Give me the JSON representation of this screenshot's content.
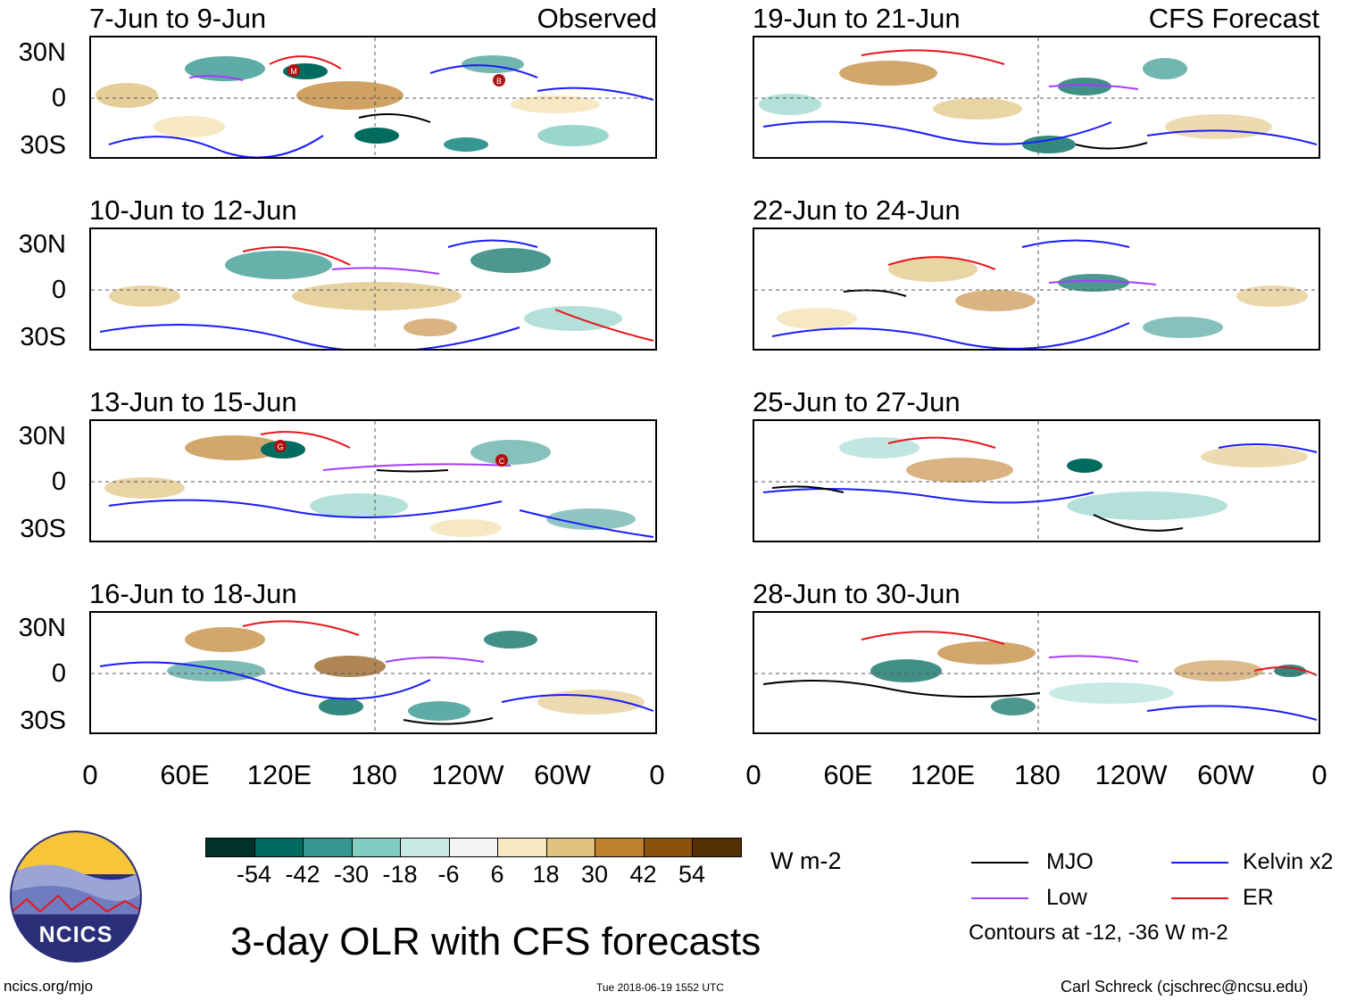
{
  "header": {
    "left_tag": "Observed",
    "right_tag": "CFS Forecast"
  },
  "panels_left": [
    {
      "title": "7-Jun to 9-Jun"
    },
    {
      "title": "10-Jun to 12-Jun"
    },
    {
      "title": "13-Jun to 15-Jun"
    },
    {
      "title": "16-Jun to 18-Jun"
    }
  ],
  "panels_right": [
    {
      "title": "19-Jun to 21-Jun"
    },
    {
      "title": "22-Jun to 24-Jun"
    },
    {
      "title": "25-Jun to 27-Jun"
    },
    {
      "title": "28-Jun to 30-Jun"
    }
  ],
  "lat_labels": [
    "30N",
    "0",
    "30S"
  ],
  "lon_labels": [
    "0",
    "60E",
    "120E",
    "180",
    "120W",
    "60W",
    "0"
  ],
  "markers": {
    "m": "M",
    "b": "B",
    "g": "G",
    "c": "C"
  },
  "colorbar": {
    "unit": "W m-2",
    "ticks": [
      "-54",
      "-42",
      "-30",
      "-18",
      "-6",
      "6",
      "18",
      "30",
      "42",
      "54"
    ],
    "colors": [
      "#01332c",
      "#006b5f",
      "#35978f",
      "#80cdc1",
      "#c7eae5",
      "#f5f5f5",
      "#f6e8c3",
      "#dfc27d",
      "#bf812d",
      "#8c510a",
      "#543005"
    ]
  },
  "legend": {
    "mjo": "MJO",
    "kelvin": "Kelvin x2",
    "low": "Low",
    "er": "ER",
    "note": "Contours at -12, -36 W m-2",
    "colors": {
      "mjo": "#000000",
      "kelvin": "#1a1aff",
      "low": "#a33cff",
      "er": "#e8141c"
    }
  },
  "logo": {
    "text": "NCICS"
  },
  "main_title": "3-day OLR with CFS forecasts",
  "footer": {
    "url": "ncics.org/mjo",
    "timestamp": "Tue 2018-06-19 1552 UTC",
    "credit": "Carl Schreck (cjschrec@ncsu.edu)"
  }
}
